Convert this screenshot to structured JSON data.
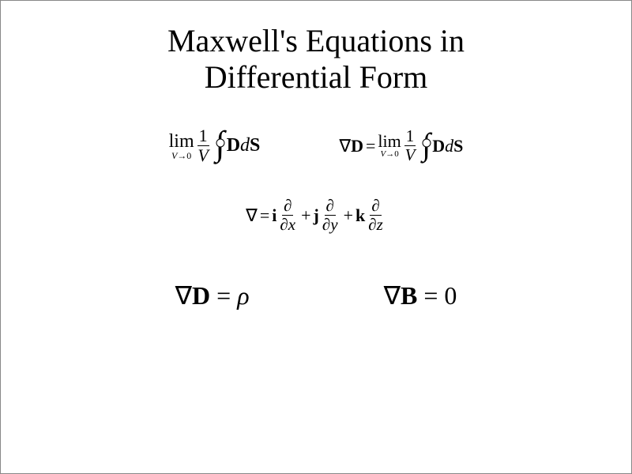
{
  "title": {
    "line1": "Maxwell's Equations in",
    "line2": "Differential Form"
  },
  "equations": {
    "eq1": {
      "lim_text": "lim",
      "lim_sub_left": "V",
      "lim_sub_arrow": "→",
      "lim_sub_right": "0",
      "frac_num": "1",
      "frac_den": "V",
      "int_D": "D",
      "int_d": "d",
      "int_S": "S"
    },
    "eq2": {
      "nabla": "∇",
      "D": "D",
      "eq": "=",
      "lim_text": "lim",
      "lim_sub_left": "V",
      "lim_sub_arrow": "→",
      "lim_sub_right": "0",
      "frac_num": "1",
      "frac_den": "V",
      "int_D": "D",
      "int_d": "d",
      "int_S": "S"
    },
    "del_def": {
      "nabla": "∇",
      "eq": "=",
      "i": "i",
      "j": "j",
      "k": "k",
      "plus": "+",
      "partial": "∂",
      "x": "x",
      "y": "y",
      "z": "z"
    },
    "gauss_D": {
      "nabla": "∇",
      "D": "D",
      "eq": "=",
      "rho": "ρ"
    },
    "gauss_B": {
      "nabla": "∇",
      "B": "B",
      "eq": "=",
      "zero": "0"
    }
  },
  "style": {
    "title_fontsize_pt": 40,
    "body_fontsize_pt": 24,
    "body_big_fontsize_pt": 32,
    "text_color": "#000000",
    "background_color": "#ffffff",
    "font_family": "Times New Roman"
  }
}
